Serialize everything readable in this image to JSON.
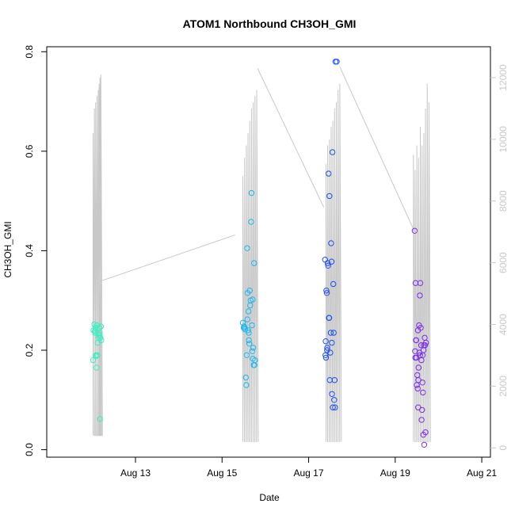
{
  "chart_data": {
    "type": "scatter",
    "title": "ATOM1 Northbound CH3OH_GMI",
    "xlabel": "Date",
    "ylabel": "CH3OH_GMI",
    "x_unit": "days since Aug 12 00:00",
    "xlim": [
      -1.05,
      9.2
    ],
    "ylim": [
      -0.015,
      0.81
    ],
    "y2lim": [
      -300,
      13000
    ],
    "x_ticks": [
      {
        "value": 1,
        "label": "Aug 13"
      },
      {
        "value": 3,
        "label": "Aug 15"
      },
      {
        "value": 5,
        "label": "Aug 17"
      },
      {
        "value": 7,
        "label": "Aug 19"
      },
      {
        "value": 9,
        "label": "Aug 21"
      }
    ],
    "y_ticks": [
      {
        "value": 0.0,
        "label": "0.0"
      },
      {
        "value": 0.2,
        "label": "0.2"
      },
      {
        "value": 0.4,
        "label": "0.4"
      },
      {
        "value": 0.6,
        "label": "0.6"
      },
      {
        "value": 0.8,
        "label": "0.8"
      }
    ],
    "y2_ticks": [
      {
        "value": 0,
        "label": "0"
      },
      {
        "value": 2000,
        "label": "2000"
      },
      {
        "value": 4000,
        "label": "4000"
      },
      {
        "value": 6000,
        "label": "6000"
      },
      {
        "value": 8000,
        "label": "8000"
      },
      {
        "value": 10000,
        "label": "10000"
      },
      {
        "value": 12000,
        "label": "12000"
      }
    ],
    "secondary_series_color": "#c8c8c8",
    "flights": [
      {
        "color": "#38f0c0",
        "profile_x": [
          0.02,
          0.05,
          0.08,
          0.11,
          0.14,
          0.16,
          0.18,
          0.2
        ],
        "profile_peaks": [
          10200,
          11000,
          11200,
          11400,
          11600,
          11800,
          12000,
          12100
        ],
        "profile_base": 400,
        "connector_to_next": [
          [
            0.18,
            5400
          ],
          [
            3.3,
            6900
          ]
        ],
        "points": [
          [
            0.02,
            0.18
          ],
          [
            0.03,
            0.24
          ],
          [
            0.05,
            0.252
          ],
          [
            0.07,
            0.235
          ],
          [
            0.08,
            0.245
          ],
          [
            0.09,
            0.19
          ],
          [
            0.1,
            0.165
          ],
          [
            0.11,
            0.25
          ],
          [
            0.12,
            0.19
          ],
          [
            0.13,
            0.215
          ],
          [
            0.14,
            0.233
          ],
          [
            0.15,
            0.225
          ],
          [
            0.16,
            0.245
          ],
          [
            0.17,
            0.23
          ],
          [
            0.18,
            0.062
          ],
          [
            0.19,
            0.225
          ],
          [
            0.2,
            0.248
          ],
          [
            0.21,
            0.22
          ],
          [
            0.085,
            0.188
          ],
          [
            0.175,
            0.235
          ],
          [
            0.06,
            0.238
          ]
        ]
      },
      {
        "color": "#1ab8f0",
        "profile_x": [
          3.48,
          3.52,
          3.56,
          3.6,
          3.64,
          3.68,
          3.72,
          3.76,
          3.8
        ],
        "profile_peaks": [
          8800,
          9400,
          9800,
          10200,
          10600,
          11000,
          11200,
          11400,
          11600
        ],
        "profile_base": 200,
        "connector_to_next": [
          [
            3.82,
            12300
          ],
          [
            5.35,
            7800
          ]
        ],
        "points": [
          [
            3.48,
            0.255
          ],
          [
            3.5,
            0.245
          ],
          [
            3.51,
            0.248
          ],
          [
            3.52,
            0.245
          ],
          [
            3.53,
            0.242
          ],
          [
            3.55,
            0.145
          ],
          [
            3.56,
            0.13
          ],
          [
            3.57,
            0.19
          ],
          [
            3.58,
            0.405
          ],
          [
            3.59,
            0.315
          ],
          [
            3.6,
            0.24
          ],
          [
            3.61,
            0.278
          ],
          [
            3.62,
            0.22
          ],
          [
            3.63,
            0.213
          ],
          [
            3.64,
            0.32
          ],
          [
            3.65,
            0.29
          ],
          [
            3.66,
            0.3
          ],
          [
            3.67,
            0.458
          ],
          [
            3.68,
            0.516
          ],
          [
            3.69,
            0.25
          ],
          [
            3.7,
            0.198
          ],
          [
            3.71,
            0.183
          ],
          [
            3.72,
            0.205
          ],
          [
            3.73,
            0.17
          ],
          [
            3.74,
            0.375
          ],
          [
            3.75,
            0.17
          ],
          [
            3.76,
            0.18
          ],
          [
            3.585,
            0.262
          ],
          [
            3.615,
            0.235
          ],
          [
            3.705,
            0.302
          ]
        ]
      },
      {
        "color": "#1e4ef0",
        "profile_x": [
          5.4,
          5.44,
          5.48,
          5.52,
          5.56,
          5.6,
          5.64,
          5.68,
          5.72
        ],
        "profile_peaks": [
          9200,
          9800,
          10000,
          10400,
          10600,
          11000,
          11200,
          11600,
          11800
        ],
        "profile_base": 200,
        "connector_to_next": [
          [
            5.72,
            12350
          ],
          [
            7.45,
            7000
          ]
        ],
        "points": [
          [
            5.38,
            0.382
          ],
          [
            5.39,
            0.19
          ],
          [
            5.4,
            0.185
          ],
          [
            5.41,
            0.32
          ],
          [
            5.42,
            0.315
          ],
          [
            5.43,
            0.205
          ],
          [
            5.44,
            0.375
          ],
          [
            5.45,
            0.37
          ],
          [
            5.46,
            0.555
          ],
          [
            5.47,
            0.265
          ],
          [
            5.48,
            0.51
          ],
          [
            5.49,
            0.14
          ],
          [
            5.5,
            0.195
          ],
          [
            5.51,
            0.235
          ],
          [
            5.52,
            0.415
          ],
          [
            5.53,
            0.378
          ],
          [
            5.54,
            0.112
          ],
          [
            5.55,
            0.598
          ],
          [
            5.56,
            0.085
          ],
          [
            5.57,
            0.333
          ],
          [
            5.58,
            0.235
          ],
          [
            5.59,
            0.1
          ],
          [
            5.6,
            0.14
          ],
          [
            5.61,
            0.085
          ],
          [
            5.62,
            0.78
          ],
          [
            5.65,
            0.78
          ],
          [
            5.395,
            0.218
          ],
          [
            5.425,
            0.2
          ],
          [
            5.475,
            0.265
          ],
          [
            5.535,
            0.215
          ]
        ]
      },
      {
        "color": "#7a2ef0",
        "profile_x": [
          7.42,
          7.46,
          7.5,
          7.54,
          7.58,
          7.62,
          7.66,
          7.7,
          7.74,
          7.78
        ],
        "profile_peaks": [
          9500,
          9000,
          9800,
          9400,
          10400,
          9800,
          10200,
          11000,
          11800,
          11200
        ],
        "profile_base": 200,
        "connector_to_next": null,
        "points": [
          [
            7.45,
            0.44
          ],
          [
            7.46,
            0.198
          ],
          [
            7.47,
            0.335
          ],
          [
            7.48,
            0.22
          ],
          [
            7.49,
            0.185
          ],
          [
            7.5,
            0.13
          ],
          [
            7.51,
            0.15
          ],
          [
            7.52,
            0.123
          ],
          [
            7.53,
            0.085
          ],
          [
            7.54,
            0.165
          ],
          [
            7.55,
            0.25
          ],
          [
            7.56,
            0.195
          ],
          [
            7.57,
            0.31
          ],
          [
            7.58,
            0.335
          ],
          [
            7.59,
            0.245
          ],
          [
            7.6,
            0.21
          ],
          [
            7.61,
            0.06
          ],
          [
            7.62,
            0.08
          ],
          [
            7.63,
            0.135
          ],
          [
            7.64,
            0.115
          ],
          [
            7.65,
            0.03
          ],
          [
            7.66,
            0.21
          ],
          [
            7.67,
            0.01
          ],
          [
            7.68,
            0.225
          ],
          [
            7.69,
            0.21
          ],
          [
            7.7,
            0.035
          ],
          [
            7.71,
            0.215
          ],
          [
            7.465,
            0.185
          ],
          [
            7.535,
            0.14
          ],
          [
            7.575,
            0.19
          ],
          [
            7.605,
            0.18
          ],
          [
            7.635,
            0.19
          ],
          [
            7.655,
            0.2
          ],
          [
            7.485,
            0.22
          ],
          [
            7.525,
            0.24
          ]
        ]
      }
    ]
  }
}
